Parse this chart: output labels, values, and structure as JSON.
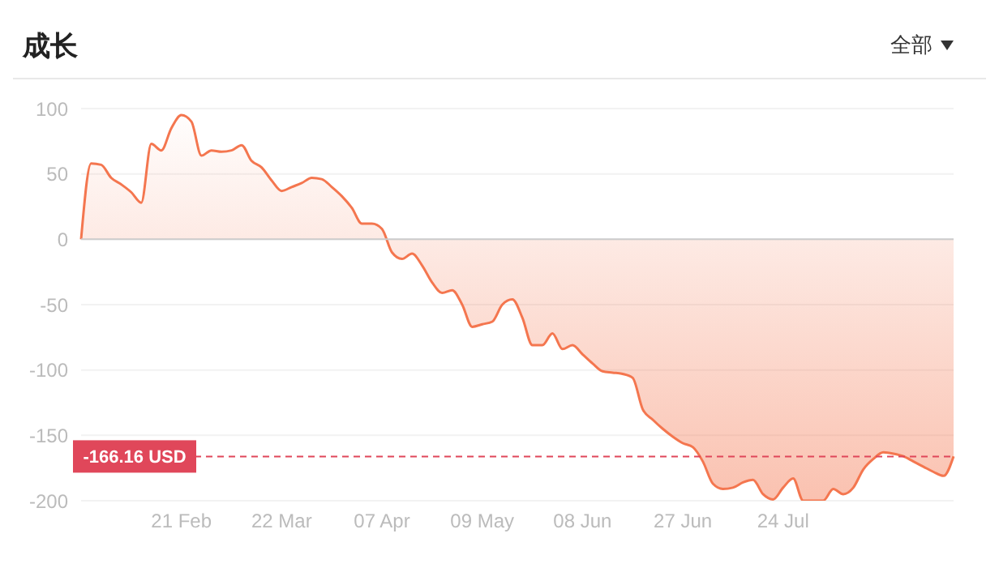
{
  "chart_data": {
    "type": "area",
    "title": "成长",
    "annotations": [
      "全部"
    ],
    "categories": [
      null,
      null,
      null,
      null,
      null,
      null,
      null,
      null,
      null,
      null,
      "21 Feb",
      null,
      null,
      null,
      null,
      null,
      null,
      null,
      null,
      null,
      "22 Mar",
      null,
      null,
      null,
      null,
      null,
      null,
      null,
      null,
      null,
      "07 Apr",
      null,
      null,
      null,
      null,
      null,
      null,
      null,
      null,
      null,
      "09 May",
      null,
      null,
      null,
      null,
      null,
      null,
      null,
      null,
      null,
      "08 Jun",
      null,
      null,
      null,
      null,
      null,
      null,
      null,
      null,
      null,
      "27 Jun",
      null,
      null,
      null,
      null,
      null,
      null,
      null,
      null,
      null,
      "24 Jul",
      null,
      null,
      null,
      null,
      null,
      null,
      null,
      null,
      null,
      null,
      null,
      null,
      null,
      null,
      null,
      null,
      null
    ],
    "values": [
      0,
      58,
      57,
      47,
      42,
      36,
      28,
      73,
      68,
      85,
      95,
      90,
      64,
      68,
      67,
      68,
      72,
      60,
      55,
      45,
      37,
      40,
      43,
      47,
      46,
      40,
      33,
      24,
      12,
      12,
      8,
      -10,
      -15,
      -11,
      -20,
      -33,
      -41,
      -39,
      -50,
      -67,
      -65,
      -63,
      -50,
      -46,
      -60,
      -81,
      -81,
      -72,
      -84,
      -81,
      -88,
      -95,
      -101,
      -102,
      -103,
      -106,
      -130,
      -138,
      -145,
      -151,
      -156,
      -159,
      -170,
      -187,
      -191,
      -190,
      -186,
      -184,
      -195,
      -199,
      -190,
      -183,
      -200,
      -200,
      -200,
      -191,
      -195,
      -190,
      -176,
      -168,
      -163,
      -164,
      -166,
      -170,
      -174,
      -178,
      -181,
      -166
    ],
    "color": "#f4764f",
    "ylim": [
      -200,
      100
    ],
    "yticks": [
      -200,
      -150,
      -100,
      -50,
      0,
      50,
      100
    ],
    "grid": "y",
    "ref_lines": [
      {
        "axis": "y",
        "value": 0,
        "color": "#cccccc",
        "line_style": "solid"
      },
      {
        "axis": "y",
        "value": -166.16,
        "label": "-166.16 USD",
        "color": "#e0475a",
        "line_style": "dashed"
      }
    ]
  }
}
